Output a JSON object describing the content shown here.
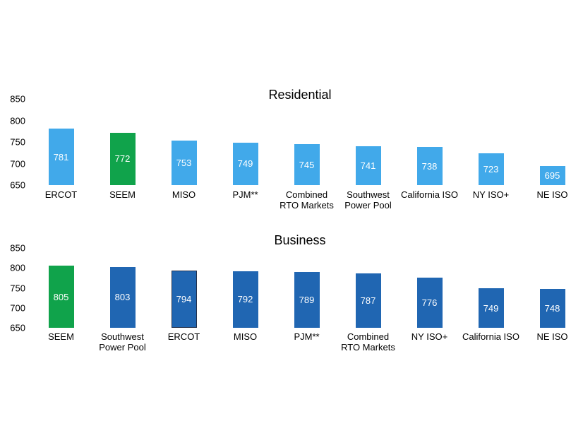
{
  "figure": {
    "background": "#FFFFFF"
  },
  "palette": {
    "light_blue": "#41A9EA",
    "green": "#10A34B",
    "dark_blue": "#2066B2",
    "outline_dark": "#22304A",
    "value_text": "#FFFFFF",
    "label_text": "#000000"
  },
  "chart_data": [
    {
      "type": "bar",
      "title": "Residential",
      "categories": [
        "ERCOT",
        "SEEM",
        "MISO",
        "PJM**",
        "Combined\nRTO Markets",
        "Southwest\nPower Pool",
        "California ISO",
        "NY ISO+",
        "NE ISO"
      ],
      "values": [
        781,
        772,
        753,
        749,
        745,
        741,
        738,
        723,
        695
      ],
      "colors": [
        "light_blue",
        "green",
        "light_blue",
        "light_blue",
        "light_blue",
        "light_blue",
        "light_blue",
        "light_blue",
        "light_blue"
      ],
      "outlined": [
        false,
        false,
        false,
        false,
        false,
        false,
        false,
        false,
        false
      ],
      "ylim": [
        650,
        850
      ],
      "yticks": [
        850,
        800,
        750,
        700,
        650
      ],
      "grid": false,
      "legend": "none",
      "value_labels": "inside-center"
    },
    {
      "type": "bar",
      "title": "Business",
      "categories": [
        "SEEM",
        "Southwest\nPower Pool",
        "ERCOT",
        "MISO",
        "PJM**",
        "Combined\nRTO Markets",
        "NY ISO+",
        "California ISO",
        "NE ISO"
      ],
      "values": [
        805,
        803,
        794,
        792,
        789,
        787,
        776,
        749,
        748
      ],
      "colors": [
        "green",
        "dark_blue",
        "dark_blue",
        "dark_blue",
        "dark_blue",
        "dark_blue",
        "dark_blue",
        "dark_blue",
        "dark_blue"
      ],
      "outlined": [
        false,
        false,
        true,
        false,
        false,
        false,
        false,
        false,
        false
      ],
      "ylim": [
        650,
        850
      ],
      "yticks": [
        850,
        800,
        750,
        700,
        650
      ],
      "grid": false,
      "legend": "none",
      "value_labels": "inside-center"
    }
  ]
}
